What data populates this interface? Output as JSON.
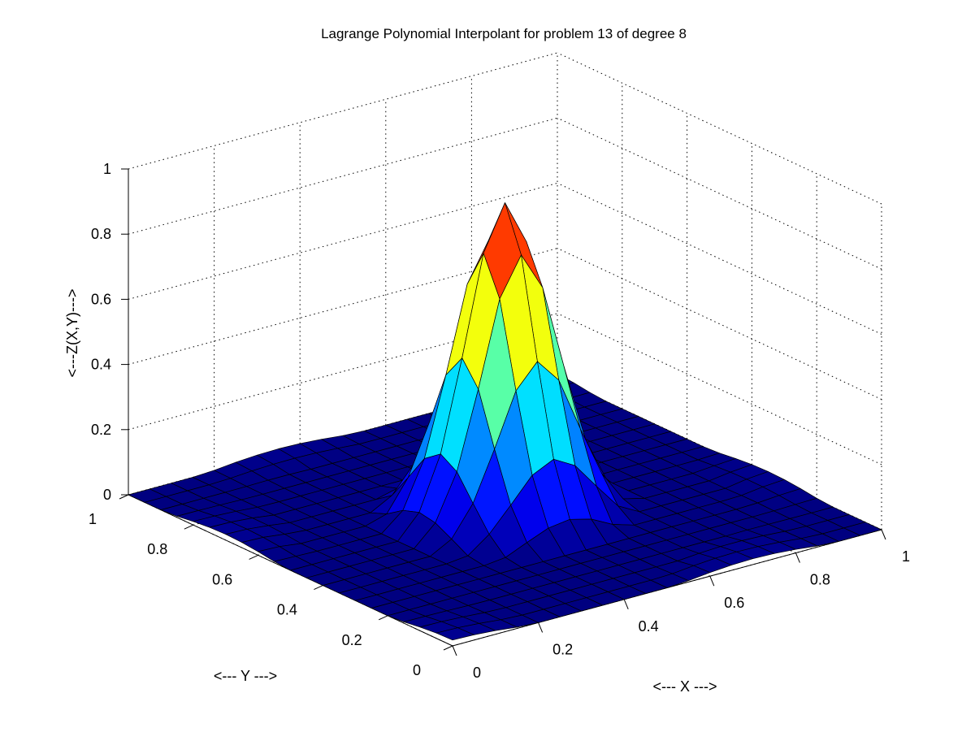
{
  "chart_data": {
    "type": "surface",
    "title": "Lagrange Polynomial Interpolant for problem 13 of degree 8",
    "xlabel": "<--- X --->",
    "ylabel": "<--- Y --->",
    "zlabel": "<---Z(X,Y)--->",
    "xlim": [
      0,
      1
    ],
    "ylim": [
      0,
      1
    ],
    "zlim": [
      0,
      1
    ],
    "xticks": [
      "0",
      "0.2",
      "0.4",
      "0.6",
      "0.8",
      "1"
    ],
    "yticks": [
      "0",
      "0.2",
      "0.4",
      "0.6",
      "0.8",
      "1"
    ],
    "zticks": [
      "0",
      "0.2",
      "0.4",
      "0.6",
      "0.8",
      "1"
    ],
    "grid": true,
    "colormap": "jet",
    "grid_points": 21,
    "peak": {
      "x": 0.5,
      "y": 0.5,
      "z": 0.95
    }
  }
}
